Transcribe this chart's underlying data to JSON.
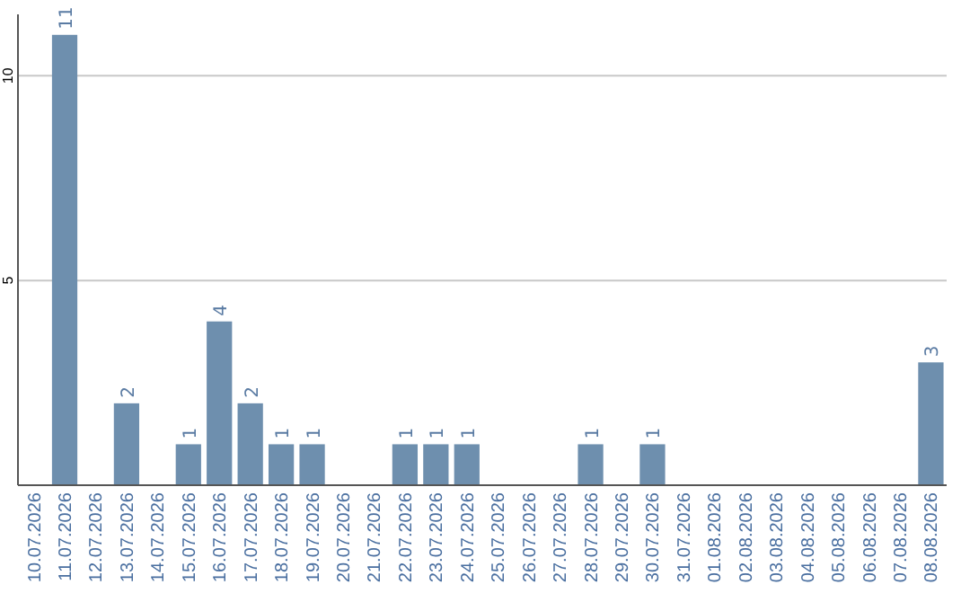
{
  "chart_data": {
    "type": "bar",
    "categories": [
      "10.07.2026",
      "11.07.2026",
      "12.07.2026",
      "13.07.2026",
      "14.07.2026",
      "15.07.2026",
      "16.07.2026",
      "17.07.2026",
      "18.07.2026",
      "19.07.2026",
      "20.07.2026",
      "21.07.2026",
      "22.07.2026",
      "23.07.2026",
      "24.07.2026",
      "25.07.2026",
      "26.07.2026",
      "27.07.2026",
      "28.07.2026",
      "29.07.2026",
      "30.07.2026",
      "31.07.2026",
      "01.08.2026",
      "02.08.2026",
      "03.08.2026",
      "04.08.2026",
      "05.08.2026",
      "06.08.2026",
      "07.08.2026",
      "08.08.2026"
    ],
    "values": [
      0,
      11,
      0,
      2,
      0,
      1,
      4,
      2,
      1,
      1,
      0,
      0,
      1,
      1,
      1,
      0,
      0,
      0,
      1,
      0,
      1,
      0,
      0,
      0,
      0,
      0,
      0,
      0,
      0,
      3
    ],
    "value_labels": [
      null,
      "11",
      null,
      "2",
      null,
      "1",
      "4",
      "2",
      "1",
      "1",
      null,
      null,
      "1",
      "1",
      "1",
      null,
      null,
      null,
      "1",
      null,
      "1",
      null,
      null,
      null,
      null,
      null,
      null,
      null,
      null,
      "3"
    ],
    "color": "#6e8fae",
    "ylim": [
      0,
      11.5
    ],
    "yticks": [
      5,
      10
    ],
    "grid": "y"
  }
}
